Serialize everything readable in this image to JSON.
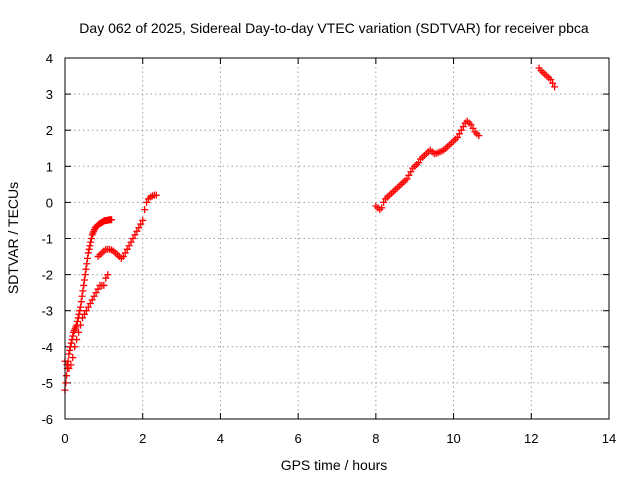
{
  "chart_data": {
    "type": "scatter",
    "title": "Day 062 of 2025, Sidereal Day-to-day VTEC variation (SDTVAR) for receiver pbca",
    "xlabel": "GPS time / hours",
    "ylabel": "SDTVAR / TECUs",
    "xlim": [
      0,
      14
    ],
    "ylim": [
      -6,
      4
    ],
    "xticks": [
      0,
      2,
      4,
      6,
      8,
      10,
      12,
      14
    ],
    "yticks": [
      -6,
      -5,
      -4,
      -3,
      -2,
      -1,
      0,
      1,
      2,
      3,
      4
    ],
    "grid": true,
    "legend": "none",
    "marker": "plus",
    "color": "#ff0000",
    "series": [
      {
        "x": [
          0.0,
          0.02,
          0.04,
          0.06,
          0.08,
          0.1,
          0.12,
          0.14,
          0.16,
          0.18,
          0.2,
          0.22,
          0.24,
          0.26,
          0.28,
          0.3,
          0.32,
          0.34,
          0.36,
          0.38,
          0.4,
          0.42,
          0.44,
          0.46,
          0.48,
          0.5,
          0.52,
          0.54,
          0.56,
          0.58,
          0.6,
          0.62,
          0.64,
          0.66,
          0.68,
          0.7,
          0.72,
          0.74,
          0.76,
          0.78,
          0.8,
          0.82,
          0.84,
          0.86,
          0.88,
          0.9,
          0.92,
          0.94,
          0.96,
          0.98,
          1.0,
          1.02,
          1.04,
          1.06,
          1.08,
          1.1,
          1.12,
          1.14,
          1.16,
          1.18,
          1.2
        ],
        "y": [
          -5.2,
          -5.0,
          -4.8,
          -4.6,
          -4.4,
          -4.2,
          -4.1,
          -4.0,
          -3.9,
          -3.8,
          -3.7,
          -3.6,
          -3.55,
          -3.5,
          -3.45,
          -3.4,
          -3.3,
          -3.2,
          -3.1,
          -3.0,
          -2.9,
          -2.75,
          -2.6,
          -2.45,
          -2.3,
          -2.15,
          -2.0,
          -1.85,
          -1.7,
          -1.55,
          -1.4,
          -1.3,
          -1.2,
          -1.1,
          -1.0,
          -0.9,
          -0.85,
          -0.8,
          -0.75,
          -0.7,
          -0.68,
          -0.66,
          -0.64,
          -0.62,
          -0.6,
          -0.58,
          -0.57,
          -0.56,
          -0.55,
          -0.53,
          -0.52,
          -0.51,
          -0.5,
          -0.5,
          -0.5,
          -0.49,
          -0.49,
          -0.48,
          -0.48,
          -0.48,
          -0.48
        ]
      },
      {
        "x": [
          0.0,
          0.05,
          0.1,
          0.15,
          0.2,
          0.25,
          0.3,
          0.35,
          0.4,
          0.45,
          0.5,
          0.55,
          0.6,
          0.65,
          0.7,
          0.75,
          0.8,
          0.85,
          0.9,
          0.95,
          1.0,
          1.05,
          1.1
        ],
        "y": [
          -4.4,
          -4.5,
          -4.6,
          -4.5,
          -4.3,
          -4.0,
          -3.8,
          -3.6,
          -3.4,
          -3.2,
          -3.1,
          -3.0,
          -2.9,
          -2.8,
          -2.7,
          -2.6,
          -2.5,
          -2.4,
          -2.3,
          -2.3,
          -2.3,
          -2.1,
          -2.0
        ]
      },
      {
        "x": [
          0.85,
          0.9,
          0.95,
          1.0,
          1.05,
          1.1,
          1.15,
          1.2,
          1.25,
          1.3,
          1.35,
          1.4,
          1.45,
          1.5,
          1.55,
          1.6,
          1.65,
          1.7,
          1.75,
          1.8,
          1.85,
          1.9,
          1.95,
          2.0,
          2.05,
          2.1,
          2.15,
          2.2,
          2.25,
          2.3,
          2.35
        ],
        "y": [
          -1.5,
          -1.45,
          -1.4,
          -1.35,
          -1.3,
          -1.3,
          -1.3,
          -1.32,
          -1.35,
          -1.4,
          -1.45,
          -1.5,
          -1.55,
          -1.5,
          -1.4,
          -1.3,
          -1.2,
          -1.1,
          -1.0,
          -0.9,
          -0.8,
          -0.7,
          -0.6,
          -0.5,
          -0.2,
          0.0,
          0.1,
          0.15,
          0.18,
          0.2,
          0.2
        ]
      },
      {
        "x": [
          8.0,
          8.05,
          8.1,
          8.15,
          8.2,
          8.25,
          8.3,
          8.35,
          8.4,
          8.45,
          8.5,
          8.55,
          8.6,
          8.65,
          8.7,
          8.75,
          8.8,
          8.85,
          8.9,
          8.95,
          9.0,
          9.05,
          9.1,
          9.15,
          9.2,
          9.25,
          9.3,
          9.35,
          9.4,
          9.45,
          9.5,
          9.55,
          9.6,
          9.65,
          9.7,
          9.75,
          9.8,
          9.85,
          9.9,
          9.95,
          10.0,
          10.05,
          10.1,
          10.15,
          10.2,
          10.25,
          10.3,
          10.35,
          10.4,
          10.45,
          10.5,
          10.55,
          10.6,
          10.65
        ],
        "y": [
          -0.1,
          -0.15,
          -0.2,
          -0.15,
          0.0,
          0.1,
          0.15,
          0.2,
          0.25,
          0.3,
          0.35,
          0.4,
          0.45,
          0.5,
          0.55,
          0.6,
          0.65,
          0.75,
          0.85,
          0.95,
          1.0,
          1.05,
          1.1,
          1.2,
          1.25,
          1.3,
          1.35,
          1.4,
          1.45,
          1.4,
          1.35,
          1.35,
          1.38,
          1.4,
          1.42,
          1.45,
          1.5,
          1.55,
          1.6,
          1.65,
          1.7,
          1.75,
          1.8,
          1.9,
          2.0,
          2.1,
          2.2,
          2.25,
          2.2,
          2.15,
          2.05,
          1.95,
          1.9,
          1.85
        ]
      },
      {
        "x": [
          12.2,
          12.25,
          12.3,
          12.35,
          12.4,
          12.45,
          12.5,
          12.55,
          12.6
        ],
        "y": [
          3.72,
          3.65,
          3.6,
          3.55,
          3.5,
          3.45,
          3.4,
          3.3,
          3.2
        ]
      }
    ]
  }
}
